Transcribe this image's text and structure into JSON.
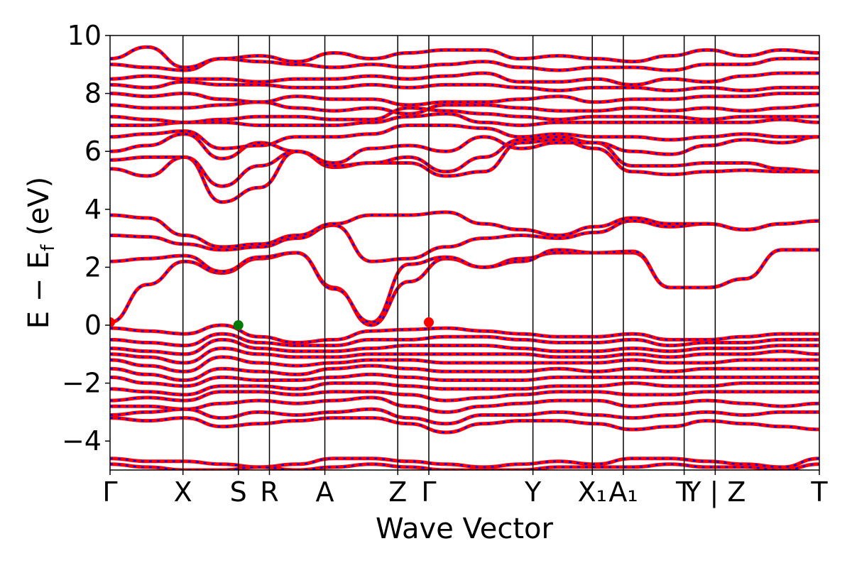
{
  "chart_data": {
    "type": "line",
    "xlabel": "Wave Vector",
    "ylabel": "E − E",
    "ylabel_sub": "f",
    "ylabel_unit": " (eV)",
    "ylim": [
      -5,
      10
    ],
    "y_ticks": [
      -4,
      -2,
      0,
      2,
      4,
      6,
      8,
      10
    ],
    "y_tick_labels": [
      "−4",
      "−2",
      "0",
      "2",
      "4",
      "6",
      "8",
      "10"
    ],
    "k_path": [
      {
        "label": "Γ",
        "x": 0.0
      },
      {
        "label": "X",
        "x": 0.5
      },
      {
        "label": "S",
        "x": 0.88
      },
      {
        "label": "R",
        "x": 1.093
      },
      {
        "label": "A",
        "x": 1.473
      },
      {
        "label": "Z",
        "x": 1.973
      },
      {
        "label": "Γ",
        "x": 2.186
      },
      {
        "label": "Y",
        "x": 2.9
      },
      {
        "label": "X₁",
        "x": 3.307
      },
      {
        "label": "A₁",
        "x": 3.52
      },
      {
        "label": "T",
        "x": 3.937
      },
      {
        "label": "Y | Z",
        "x": 4.15
      },
      {
        "label": "T",
        "x": 4.864
      }
    ],
    "x_range": [
      0,
      4.864
    ],
    "grid": false,
    "legend": "none",
    "colors": {
      "spin_up": "#ff0000",
      "spin_down": "#0000ff",
      "vbm": "#007a00",
      "cbm": "#ff0000"
    },
    "conduction_bands": [
      [
        0.1,
        1.4,
        2.2,
        1.8,
        2.3,
        2.5,
        1.3,
        0.0,
        1.5,
        2.3,
        2.0,
        2.3,
        2.5,
        2.5,
        2.5,
        1.3,
        1.3,
        1.6,
        2.6,
        2.6
      ],
      [
        2.2,
        2.3,
        2.4,
        1.85,
        2.35,
        2.5,
        1.25,
        0.1,
        2.1,
        2.35,
        2.0,
        2.2,
        2.6,
        2.5,
        2.55,
        1.3,
        1.3,
        1.6,
        2.6,
        2.6
      ],
      [
        3.1,
        3.05,
        2.8,
        2.6,
        2.7,
        3.0,
        3.45,
        2.2,
        2.3,
        2.7,
        3.0,
        3.1,
        3.0,
        3.2,
        3.6,
        3.4,
        3.5,
        3.3,
        3.5,
        3.6
      ],
      [
        3.8,
        3.7,
        3.1,
        2.7,
        2.8,
        3.1,
        3.5,
        3.8,
        3.8,
        3.9,
        3.5,
        3.3,
        3.1,
        3.4,
        3.7,
        3.5,
        3.5,
        3.3,
        3.5,
        3.6
      ],
      [
        5.4,
        5.15,
        5.8,
        4.25,
        4.75,
        6.0,
        5.45,
        5.6,
        5.6,
        5.15,
        5.3,
        6.3,
        6.4,
        6.1,
        5.3,
        5.2,
        5.3,
        5.35,
        5.3,
        5.3
      ],
      [
        5.7,
        5.8,
        5.8,
        4.8,
        5.5,
        6.0,
        5.5,
        5.6,
        5.8,
        5.3,
        5.8,
        6.4,
        6.5,
        6.3,
        5.5,
        5.5,
        5.6,
        5.6,
        5.4,
        5.3
      ],
      [
        6.0,
        6.2,
        6.6,
        5.75,
        6.3,
        6.0,
        5.6,
        6.1,
        6.2,
        6.0,
        6.5,
        6.1,
        6.3,
        6.3,
        6.0,
        5.9,
        6.2,
        6.4,
        6.3,
        6.5
      ],
      [
        6.5,
        6.6,
        6.7,
        6.1,
        6.2,
        6.5,
        6.5,
        6.6,
        6.9,
        6.9,
        6.8,
        6.5,
        6.6,
        6.5,
        6.5,
        6.4,
        6.5,
        6.6,
        6.5,
        6.5
      ],
      [
        6.9,
        6.9,
        7.0,
        7.0,
        6.9,
        6.9,
        6.9,
        7.0,
        7.2,
        7.3,
        7.0,
        6.9,
        7.0,
        7.0,
        7.0,
        7.0,
        7.0,
        7.0,
        7.1,
        7.0
      ],
      [
        7.2,
        7.1,
        7.0,
        7.1,
        7.2,
        7.2,
        7.1,
        7.1,
        7.5,
        7.4,
        7.3,
        7.2,
        7.1,
        7.2,
        7.2,
        7.2,
        7.1,
        7.2,
        7.2,
        7.2
      ],
      [
        7.6,
        7.5,
        7.5,
        7.6,
        7.7,
        7.5,
        7.4,
        7.5,
        7.3,
        7.6,
        7.6,
        7.5,
        7.4,
        7.4,
        7.5,
        7.4,
        7.5,
        7.4,
        7.5,
        7.6
      ],
      [
        8.0,
        7.9,
        8.0,
        7.8,
        7.7,
        7.9,
        7.8,
        7.8,
        7.6,
        7.7,
        7.7,
        7.8,
        7.9,
        7.7,
        7.8,
        7.8,
        7.9,
        7.9,
        8.0,
        8.0
      ],
      [
        8.3,
        8.2,
        8.4,
        8.3,
        8.3,
        8.2,
        8.2,
        8.3,
        8.2,
        8.3,
        8.3,
        8.2,
        8.1,
        8.2,
        8.2,
        8.1,
        8.2,
        8.1,
        8.2,
        8.2
      ],
      [
        8.5,
        8.6,
        8.5,
        8.5,
        8.4,
        8.5,
        8.5,
        8.6,
        8.5,
        8.6,
        8.7,
        8.4,
        8.4,
        8.5,
        8.3,
        8.5,
        8.4,
        8.6,
        8.7,
        8.7
      ],
      [
        9.0,
        8.9,
        8.8,
        9.2,
        9.1,
        9.0,
        8.9,
        9.0,
        8.9,
        9.0,
        9.1,
        8.9,
        8.8,
        8.9,
        8.9,
        8.8,
        9.0,
        9.0,
        9.2,
        9.2
      ],
      [
        9.2,
        9.6,
        8.9,
        9.2,
        9.3,
        9.1,
        9.4,
        9.2,
        9.4,
        9.5,
        9.5,
        9.2,
        9.3,
        9.2,
        9.1,
        9.3,
        9.5,
        9.3,
        9.5,
        9.4
      ]
    ],
    "valence_bands": [
      [
        -0.1,
        -0.2,
        -0.3,
        0.0,
        -0.4,
        -0.6,
        -0.5,
        -0.2,
        -0.15,
        -0.1,
        -0.2,
        -0.3,
        -0.4,
        -0.4,
        -0.3,
        -0.5,
        -0.5,
        -0.4,
        -0.3,
        -0.3
      ],
      [
        -0.5,
        -0.6,
        -0.7,
        -0.3,
        -0.6,
        -0.7,
        -0.7,
        -0.5,
        -0.5,
        -0.4,
        -0.4,
        -0.5,
        -0.6,
        -0.6,
        -0.5,
        -0.7,
        -0.6,
        -0.6,
        -0.5,
        -0.5
      ],
      [
        -0.8,
        -0.9,
        -1.0,
        -0.5,
        -0.8,
        -0.9,
        -0.9,
        -0.8,
        -0.7,
        -0.7,
        -0.7,
        -0.8,
        -0.9,
        -0.9,
        -0.8,
        -0.9,
        -0.8,
        -0.8,
        -0.7,
        -0.7
      ],
      [
        -1.0,
        -1.1,
        -1.3,
        -0.8,
        -1.0,
        -1.1,
        -1.1,
        -1.0,
        -1.0,
        -1.0,
        -1.0,
        -1.0,
        -1.1,
        -1.1,
        -1.0,
        -1.1,
        -1.0,
        -1.0,
        -0.9,
        -1.0
      ],
      [
        -1.2,
        -1.4,
        -1.6,
        -1.1,
        -1.3,
        -1.4,
        -1.3,
        -1.2,
        -1.2,
        -1.3,
        -1.3,
        -1.3,
        -1.3,
        -1.3,
        -1.2,
        -1.3,
        -1.3,
        -1.2,
        -1.2,
        -1.2
      ],
      [
        -1.5,
        -1.7,
        -1.9,
        -1.5,
        -1.6,
        -1.7,
        -1.5,
        -1.4,
        -1.5,
        -1.6,
        -1.6,
        -1.6,
        -1.5,
        -1.6,
        -1.5,
        -1.6,
        -1.5,
        -1.5,
        -1.5,
        -1.5
      ],
      [
        -1.8,
        -2.0,
        -2.1,
        -1.8,
        -1.9,
        -1.9,
        -1.8,
        -1.7,
        -1.8,
        -1.9,
        -1.9,
        -1.9,
        -1.8,
        -1.8,
        -1.8,
        -1.8,
        -1.8,
        -1.8,
        -1.8,
        -1.8
      ],
      [
        -2.2,
        -2.3,
        -2.4,
        -2.1,
        -2.1,
        -2.2,
        -2.0,
        -2.0,
        -2.1,
        -2.2,
        -2.2,
        -2.2,
        -2.1,
        -2.1,
        -2.0,
        -2.1,
        -2.1,
        -2.0,
        -2.0,
        -2.0
      ],
      [
        -2.6,
        -2.5,
        -2.6,
        -2.3,
        -2.3,
        -2.4,
        -2.3,
        -2.3,
        -2.4,
        -2.6,
        -2.5,
        -2.4,
        -2.3,
        -2.3,
        -2.4,
        -2.4,
        -2.3,
        -2.3,
        -2.3,
        -2.3
      ],
      [
        -2.8,
        -2.8,
        -2.9,
        -2.7,
        -2.6,
        -2.7,
        -2.6,
        -2.5,
        -2.8,
        -3.0,
        -2.8,
        -2.7,
        -2.6,
        -2.6,
        -2.8,
        -2.7,
        -2.6,
        -2.7,
        -2.8,
        -2.7
      ],
      [
        -3.1,
        -3.0,
        -2.9,
        -3.2,
        -3.0,
        -3.1,
        -3.0,
        -2.9,
        -3.2,
        -3.4,
        -3.1,
        -3.1,
        -3.0,
        -3.1,
        -3.2,
        -3.1,
        -3.0,
        -3.1,
        -3.0,
        -3.0
      ],
      [
        -3.2,
        -3.3,
        -3.2,
        -3.5,
        -3.4,
        -3.3,
        -3.2,
        -3.2,
        -3.4,
        -3.7,
        -3.4,
        -3.3,
        -3.3,
        -3.4,
        -3.6,
        -3.5,
        -3.3,
        -3.4,
        -3.5,
        -3.6
      ],
      [
        -4.6,
        -4.7,
        -4.7,
        -4.8,
        -4.9,
        -4.8,
        -4.6,
        -4.6,
        -4.7,
        -4.8,
        -4.9,
        -4.8,
        -4.7,
        -4.8,
        -4.6,
        -4.6,
        -4.7,
        -4.8,
        -4.9,
        -4.6
      ],
      [
        -4.8,
        -4.9,
        -5.0,
        -5.0,
        -4.9,
        -5.0,
        -4.9,
        -4.8,
        -4.9,
        -5.0,
        -5.0,
        -5.0,
        -4.9,
        -4.9,
        -4.9,
        -4.8,
        -4.9,
        -4.9,
        -5.0,
        -4.8
      ]
    ],
    "vbm": {
      "x": 0.88,
      "y": 0.0
    },
    "cbm": [
      {
        "x": 0.0,
        "y": 0.1
      },
      {
        "x": 2.186,
        "y": 0.1
      }
    ]
  }
}
